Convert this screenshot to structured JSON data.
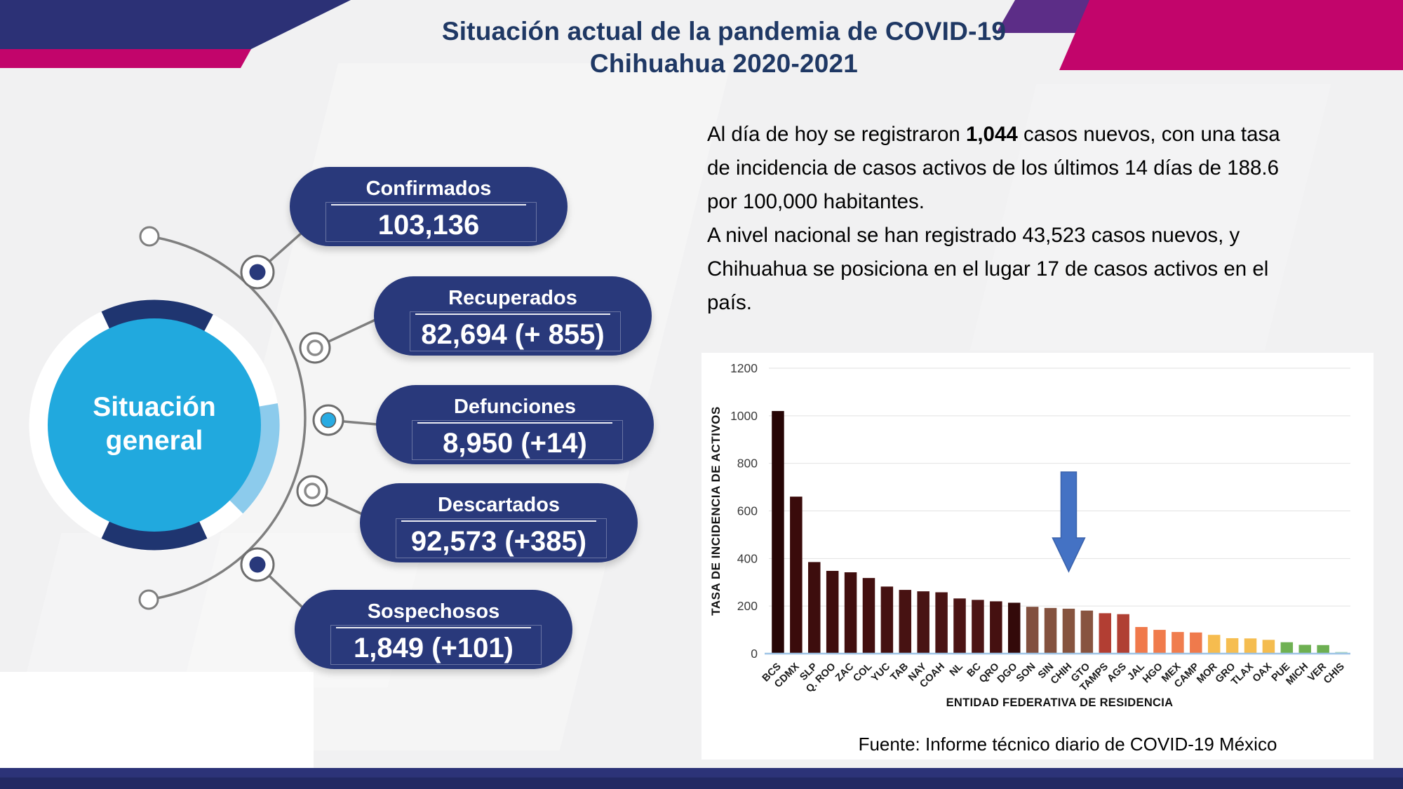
{
  "title": {
    "line1": "Situación actual de la pandemia de COVID-19",
    "line2": "Chihuahua 2020-2021"
  },
  "situacion": {
    "circle_line1": "Situación",
    "circle_line2": "general",
    "items": [
      {
        "label": "Confirmados",
        "value": "103,136"
      },
      {
        "label": "Recuperados",
        "value": "82,694 (+ 855)"
      },
      {
        "label": "Defunciones",
        "value": "8,950 (+14)"
      },
      {
        "label": "Descartados",
        "value": "92,573 (+385)"
      },
      {
        "label": "Sospechosos",
        "value": "1,849 (+101)"
      }
    ]
  },
  "summary": {
    "line1_pre": "Al día de hoy se registraron ",
    "line1_bold": "1,044",
    "line1_post": " casos nuevos, con una tasa",
    "line2": "de incidencia de casos activos de los últimos 14 días de 188.6",
    "line3": "por 100,000 habitantes.",
    "line4": "A nivel nacional se han registrado 43,523 casos nuevos, y",
    "line5": "Chihuahua se posiciona en el lugar 17 de casos activos en el",
    "line6": "país."
  },
  "chart_data": {
    "type": "bar",
    "title": "",
    "xlabel": "ENTIDAD FEDERATIVA DE RESIDENCIA",
    "ylabel": "TASA DE INCIDENCIA DE ACTIVOS",
    "ylim": [
      0,
      1200
    ],
    "yticks": [
      0,
      200,
      400,
      600,
      800,
      1000,
      1200
    ],
    "grid": true,
    "legend": false,
    "categories": [
      "BCS",
      "CDMX",
      "SLP",
      "Q. ROO",
      "ZAC",
      "COL",
      "YUC",
      "TAB",
      "NAY",
      "COAH",
      "NL",
      "BC",
      "QRO",
      "DGO",
      "SON",
      "SIN",
      "CHIH",
      "GTO",
      "TAMPS",
      "AGS",
      "JAL",
      "HGO",
      "MEX",
      "CAMP",
      "MOR",
      "GRO",
      "TLAX",
      "OAX",
      "PUE",
      "MICH",
      "VER",
      "CHIS"
    ],
    "values": [
      1020,
      660,
      385,
      348,
      342,
      318,
      282,
      268,
      262,
      258,
      232,
      226,
      220,
      214,
      197,
      192,
      189,
      181,
      170,
      166,
      112,
      100,
      91,
      89,
      79,
      65,
      64,
      58,
      48,
      37,
      36,
      7
    ],
    "bar_colors": [
      "#260505",
      "#3a0b0b",
      "#3d0d0d",
      "#3f0e0e",
      "#410f0f",
      "#431010",
      "#451111",
      "#471212",
      "#481313",
      "#4a1414",
      "#4b1414",
      "#4c1515",
      "#451010",
      "#330a0a",
      "#82503f",
      "#84523f",
      "#86543f",
      "#885440",
      "#b23e33",
      "#b04034",
      "#f0794b",
      "#f07b4c",
      "#f07d4e",
      "#ef7a4c",
      "#f6bc4f",
      "#f6be51",
      "#f5bd50",
      "#f4bc4f",
      "#6fb153",
      "#6eb052",
      "#6daf52",
      "#acd7c2"
    ],
    "baseline_color": "#9dc3e6",
    "annotations": [
      {
        "type": "down-arrow",
        "target": "CHIH",
        "color": "#4472c4"
      }
    ]
  },
  "footer": {
    "source": "Fuente: Informe técnico diario de COVID-19 México"
  },
  "colors": {
    "title_navy": "#1f3864",
    "pill_navy": "#29397b",
    "circle_cyan": "#21a9de",
    "arc_navy": "#1f3570",
    "arc_lightblue": "#8ccbec",
    "connector_gray": "#7f7f7f",
    "header_navy": "#2c3176",
    "header_magenta": "#c2056b",
    "header_purple": "#5c2d87",
    "bottom_bar_navy": "#272e6e",
    "arrow_blue": "#4472c4"
  }
}
